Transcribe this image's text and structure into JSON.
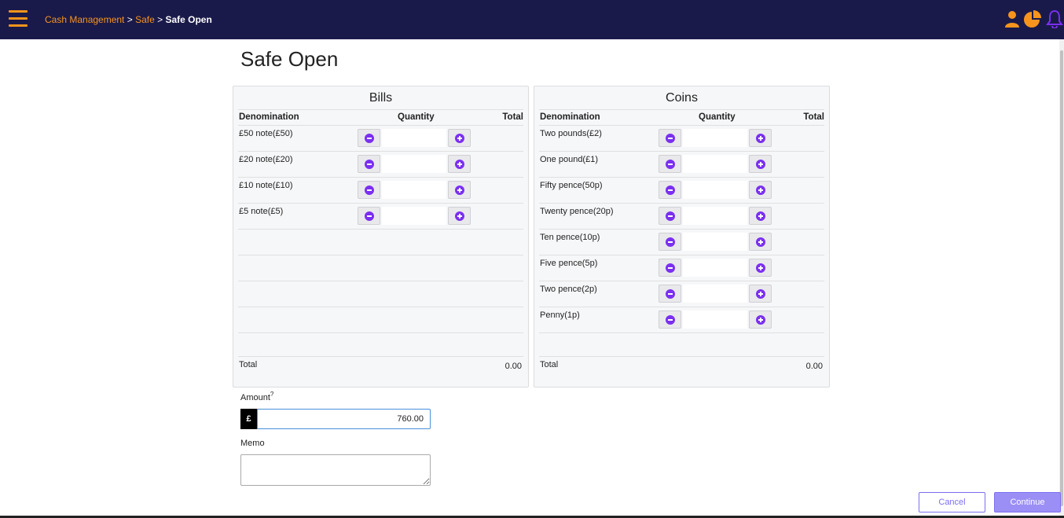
{
  "header": {
    "breadcrumb": {
      "item1": "Cash Management",
      "sep1": " > ",
      "item2": "Safe",
      "sep2": " > ",
      "current": "Safe Open"
    },
    "icons": [
      "menu-icon",
      "user-icon",
      "pie-chart-icon",
      "bell-icon"
    ],
    "background_color": "#1a1a4a",
    "accent_color": "#f7941d"
  },
  "page": {
    "title": "Safe Open"
  },
  "bills": {
    "title": "Bills",
    "columns": {
      "denomination": "Denomination",
      "quantity": "Quantity",
      "total": "Total"
    },
    "rows": [
      {
        "label": "£50 note(£50)",
        "quantity": "",
        "total": ""
      },
      {
        "label": "£20 note(£20)",
        "quantity": "",
        "total": ""
      },
      {
        "label": "£10 note(£10)",
        "quantity": "",
        "total": ""
      },
      {
        "label": "£5 note(£5)",
        "quantity": "",
        "total": ""
      }
    ],
    "total_label": "Total",
    "total_value": "0.00"
  },
  "coins": {
    "title": "Coins",
    "columns": {
      "denomination": "Denomination",
      "quantity": "Quantity",
      "total": "Total"
    },
    "rows": [
      {
        "label": "Two pounds(£2)",
        "quantity": "",
        "total": ""
      },
      {
        "label": "One pound(£1)",
        "quantity": "",
        "total": ""
      },
      {
        "label": "Fifty pence(50p)",
        "quantity": "",
        "total": ""
      },
      {
        "label": "Twenty pence(20p)",
        "quantity": "",
        "total": ""
      },
      {
        "label": "Ten pence(10p)",
        "quantity": "",
        "total": ""
      },
      {
        "label": "Five pence(5p)",
        "quantity": "",
        "total": ""
      },
      {
        "label": "Two pence(2p)",
        "quantity": "",
        "total": ""
      },
      {
        "label": "Penny(1p)",
        "quantity": "",
        "total": ""
      }
    ],
    "total_label": "Total",
    "total_value": "0.00"
  },
  "amount": {
    "label": "Amount",
    "help_icon": "?",
    "currency_symbol": "£",
    "value": "760.00"
  },
  "memo": {
    "label": "Memo",
    "value": ""
  },
  "actions": {
    "cancel_label": "Cancel",
    "continue_label": "Continue",
    "button_color": "#7b6ff0"
  }
}
